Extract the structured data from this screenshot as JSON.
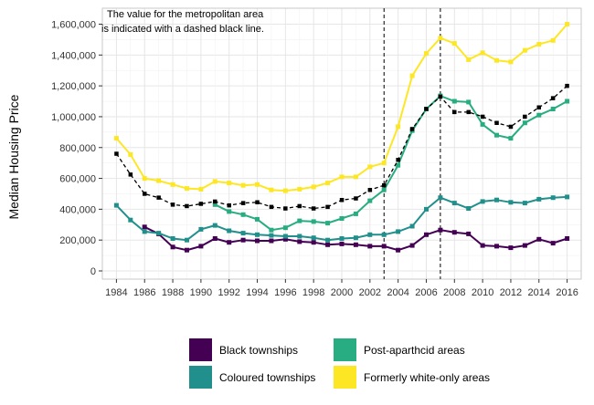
{
  "chart_data": {
    "type": "line",
    "title": "",
    "xlabel": "",
    "ylabel": "Median Housing Price",
    "xlim": [
      1983,
      2017
    ],
    "ylim": [
      0,
      1600000
    ],
    "x_ticks": [
      1984,
      1986,
      1988,
      1990,
      1992,
      1994,
      1996,
      1998,
      2000,
      2002,
      2004,
      2006,
      2008,
      2010,
      2012,
      2014,
      2016
    ],
    "x_tick_labels": [
      "1984",
      "1986",
      "1988",
      "1990",
      "1992",
      "1994",
      "1996",
      "1998",
      "2000",
      "2002",
      "2004",
      "2006",
      "2008",
      "2010",
      "2012",
      "2014",
      "2016"
    ],
    "y_ticks": [
      0,
      200000,
      400000,
      600000,
      800000,
      1000000,
      1200000,
      1400000,
      1600000
    ],
    "y_tick_labels": [
      "0",
      "200,000",
      "400,000",
      "600,000",
      "800,000",
      "1,000,000",
      "1,200,000",
      "1,400,000",
      "1,600,000"
    ],
    "grid": true,
    "legend_position": "bottom",
    "annotation": [
      "The value for the metropolitan area",
      "is indicated with a dashed black line."
    ],
    "vertical_lines": [
      2003,
      2007
    ],
    "series": [
      {
        "name": "Black townships",
        "color": "#440154",
        "x": [
          1986,
          1987,
          1988,
          1989,
          1990,
          1991,
          1992,
          1993,
          1994,
          1995,
          1996,
          1997,
          1998,
          1999,
          2000,
          2001,
          2002,
          2003,
          2004,
          2005,
          2006,
          2007,
          2008,
          2009,
          2010,
          2011,
          2012,
          2013,
          2014,
          2015,
          2016
        ],
        "values": [
          285000,
          240000,
          155000,
          135000,
          160000,
          210000,
          185000,
          200000,
          195000,
          195000,
          205000,
          190000,
          185000,
          170000,
          175000,
          170000,
          160000,
          160000,
          135000,
          165000,
          235000,
          265000,
          250000,
          240000,
          165000,
          160000,
          150000,
          165000,
          205000,
          180000,
          210000
        ]
      },
      {
        "name": "Coloured townships",
        "color": "#21908C",
        "x": [
          1984,
          1985,
          1986,
          1987,
          1988,
          1989,
          1990,
          1991,
          1992,
          1993,
          1994,
          1995,
          1996,
          1997,
          1998,
          1999,
          2000,
          2001,
          2002,
          2003,
          2004,
          2005,
          2006,
          2007,
          2008,
          2009,
          2010,
          2011,
          2012,
          2013,
          2014,
          2015,
          2016
        ],
        "values": [
          425000,
          330000,
          255000,
          245000,
          210000,
          200000,
          270000,
          295000,
          260000,
          245000,
          235000,
          230000,
          225000,
          225000,
          215000,
          200000,
          210000,
          215000,
          235000,
          235000,
          255000,
          290000,
          400000,
          475000,
          440000,
          405000,
          450000,
          460000,
          445000,
          440000,
          465000,
          475000,
          480000
        ]
      },
      {
        "name": "Post-aparthcid areas",
        "color": "#27AD81",
        "x": [
          1991,
          1992,
          1993,
          1994,
          1995,
          1996,
          1997,
          1998,
          1999,
          2000,
          2001,
          2002,
          2003,
          2004,
          2005,
          2006,
          2007,
          2008,
          2009,
          2010,
          2011,
          2012,
          2013,
          2014,
          2015,
          2016
        ],
        "values": [
          430000,
          385000,
          365000,
          335000,
          265000,
          280000,
          325000,
          320000,
          310000,
          340000,
          370000,
          455000,
          525000,
          685000,
          910000,
          1050000,
          1135000,
          1100000,
          1095000,
          950000,
          880000,
          860000,
          960000,
          1010000,
          1050000,
          1100000
        ]
      },
      {
        "name": "Formerly white-only areas",
        "color": "#FDE725",
        "x": [
          1984,
          1985,
          1986,
          1987,
          1988,
          1989,
          1990,
          1991,
          1992,
          1993,
          1994,
          1995,
          1996,
          1997,
          1998,
          1999,
          2000,
          2001,
          2002,
          2003,
          2004,
          2005,
          2006,
          2007,
          2008,
          2009,
          2010,
          2011,
          2012,
          2013,
          2014,
          2015,
          2016
        ],
        "values": [
          860000,
          755000,
          600000,
          585000,
          560000,
          535000,
          530000,
          580000,
          570000,
          555000,
          560000,
          525000,
          520000,
          530000,
          545000,
          570000,
          610000,
          610000,
          675000,
          700000,
          935000,
          1265000,
          1410000,
          1510000,
          1475000,
          1370000,
          1415000,
          1365000,
          1355000,
          1430000,
          1470000,
          1495000,
          1600000
        ]
      },
      {
        "name": "",
        "color": "#000000",
        "dashed": true,
        "marker": "square",
        "x": [
          1984,
          1985,
          1986,
          1987,
          1988,
          1989,
          1990,
          1991,
          1992,
          1993,
          1994,
          1995,
          1996,
          1997,
          1998,
          1999,
          2000,
          2001,
          2002,
          2003,
          2004,
          2005,
          2006,
          2007,
          2008,
          2009,
          2010,
          2011,
          2012,
          2013,
          2014,
          2015,
          2016
        ],
        "values": [
          760000,
          625000,
          500000,
          475000,
          430000,
          420000,
          435000,
          450000,
          425000,
          440000,
          445000,
          415000,
          405000,
          420000,
          405000,
          415000,
          460000,
          470000,
          525000,
          555000,
          720000,
          920000,
          1050000,
          1130000,
          1030000,
          1030000,
          1000000,
          960000,
          935000,
          1000000,
          1060000,
          1120000,
          1200000
        ]
      }
    ]
  }
}
